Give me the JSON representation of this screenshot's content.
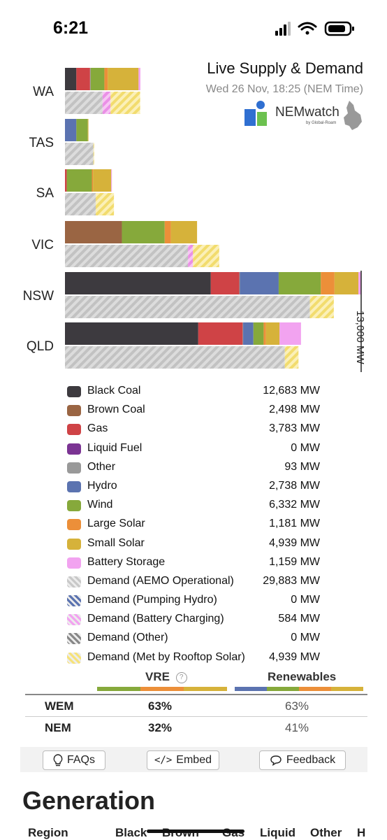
{
  "status_bar": {
    "time": "6:21"
  },
  "header": {
    "title": "Live Supply & Demand",
    "subtitle": "Wed 26 Nov, 18:25 (NEM Time)",
    "logo_text": "NEMwatch",
    "logo_sub": "by Global-Roam"
  },
  "chart_data": {
    "type": "bar",
    "orientation": "horizontal",
    "stacked": true,
    "categories": [
      "WA",
      "TAS",
      "SA",
      "VIC",
      "NSW",
      "QLD"
    ],
    "scale_label": "13,000 MW",
    "xlim": [
      0,
      13000
    ],
    "supply_series": [
      {
        "name": "Black Coal",
        "color": "#3d3a3f",
        "values": [
          500,
          0,
          0,
          0,
          6400,
          5850
        ]
      },
      {
        "name": "Brown Coal",
        "color": "#9a6543",
        "values": [
          0,
          0,
          0,
          2498,
          0,
          0
        ]
      },
      {
        "name": "Gas",
        "color": "#cf4346",
        "values": [
          600,
          0,
          80,
          0,
          1250,
          1950
        ]
      },
      {
        "name": "Other",
        "color": "#999999",
        "values": [
          30,
          0,
          0,
          0,
          30,
          20
        ]
      },
      {
        "name": "Hydro",
        "color": "#5b73b0",
        "values": [
          0,
          500,
          0,
          0,
          1700,
          450
        ]
      },
      {
        "name": "Wind",
        "color": "#86a93b",
        "values": [
          600,
          500,
          1100,
          1880,
          1850,
          450
        ]
      },
      {
        "name": "Large Solar",
        "color": "#ec8f39",
        "values": [
          150,
          0,
          50,
          270,
          600,
          100
        ]
      },
      {
        "name": "Small Solar",
        "color": "#d6b23a",
        "values": [
          1350,
          30,
          800,
          1150,
          1050,
          600
        ]
      },
      {
        "name": "Battery Storage",
        "color": "#f2a3f0",
        "values": [
          80,
          0,
          30,
          0,
          110,
          940
        ]
      }
    ],
    "demand_series": [
      {
        "name": "Demand (AEMO Operational)",
        "values": [
          1650,
          1250,
          1350,
          5400,
          10750,
          9650
        ]
      },
      {
        "name": "Demand (Battery Charging)",
        "values": [
          350,
          0,
          0,
          220,
          0,
          0
        ]
      },
      {
        "name": "Demand (Met by Rooftop Solar)",
        "values": [
          1300,
          30,
          800,
          1150,
          1050,
          600
        ]
      }
    ]
  },
  "legend": [
    {
      "label": "Black Coal",
      "value": "12,683 MW",
      "color": "#3d3a3f",
      "pattern": "solid"
    },
    {
      "label": "Brown Coal",
      "value": "2,498 MW",
      "color": "#9a6543",
      "pattern": "solid"
    },
    {
      "label": "Gas",
      "value": "3,783 MW",
      "color": "#cf4346",
      "pattern": "solid"
    },
    {
      "label": "Liquid Fuel",
      "value": "0 MW",
      "color": "#7b3493",
      "pattern": "solid"
    },
    {
      "label": "Other",
      "value": "93 MW",
      "color": "#999999",
      "pattern": "solid"
    },
    {
      "label": "Hydro",
      "value": "2,738 MW",
      "color": "#5b73b0",
      "pattern": "solid"
    },
    {
      "label": "Wind",
      "value": "6,332 MW",
      "color": "#86a93b",
      "pattern": "solid"
    },
    {
      "label": "Large Solar",
      "value": "1,181 MW",
      "color": "#ec8f39",
      "pattern": "solid"
    },
    {
      "label": "Small Solar",
      "value": "4,939 MW",
      "color": "#d6b23a",
      "pattern": "solid"
    },
    {
      "label": "Battery Storage",
      "value": "1,159 MW",
      "color": "#f2a3f0",
      "pattern": "solid"
    },
    {
      "label": "Demand (AEMO Operational)",
      "value": "29,883 MW",
      "color": "#c8c8c8",
      "pattern": "hatch"
    },
    {
      "label": "Demand (Pumping Hydro)",
      "value": "0 MW",
      "color": "#5b73b0",
      "pattern": "hatch"
    },
    {
      "label": "Demand (Battery Charging)",
      "value": "584 MW",
      "color": "#f2a3f0",
      "pattern": "hatch"
    },
    {
      "label": "Demand (Other)",
      "value": "0 MW",
      "color": "#888888",
      "pattern": "hatch"
    },
    {
      "label": "Demand (Met by Rooftop Solar)",
      "value": "4,939 MW",
      "color": "#f6e27a",
      "pattern": "hatch"
    }
  ],
  "metrics": {
    "vre_label": "VRE",
    "renewables_label": "Renewables",
    "rows": [
      {
        "region": "WEM",
        "vre": "63%",
        "renewables": "63%"
      },
      {
        "region": "NEM",
        "vre": "32%",
        "renewables": "41%"
      }
    ]
  },
  "actions": {
    "faqs": "FAQs",
    "embed": "Embed",
    "feedback": "Feedback"
  },
  "generation": {
    "title": "Generation",
    "columns": [
      "Region",
      "Black",
      "Brown",
      "Gas",
      "Liquid",
      "Other",
      "H"
    ]
  }
}
